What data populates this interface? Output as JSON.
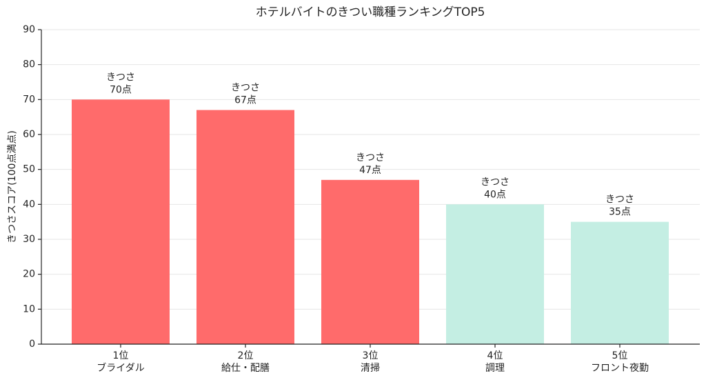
{
  "chart_data": {
    "type": "bar",
    "title": "ホテルバイトのきつい職種ランキングTOP5",
    "y_label": "きつさスコア(100点満点)",
    "categories": [
      "1位\nブライダル",
      "2位\n給仕・配膳",
      "3位\n清掃",
      "4位\n調理",
      "5位\nフロント夜勤"
    ],
    "values": [
      70,
      67,
      47,
      40,
      35
    ],
    "value_labels": [
      "きつさ\n70点",
      "きつさ\n67点",
      "きつさ\n47点",
      "きつさ\n40点",
      "きつさ\n35点"
    ],
    "colors": [
      "#ff6b6b",
      "#ff6b6b",
      "#ff6b6b",
      "#c4eee3",
      "#c4eee3"
    ],
    "ylim": [
      0,
      90
    ],
    "yticks": [
      0,
      10,
      20,
      30,
      40,
      50,
      60,
      70,
      80,
      90
    ],
    "grid": true
  }
}
